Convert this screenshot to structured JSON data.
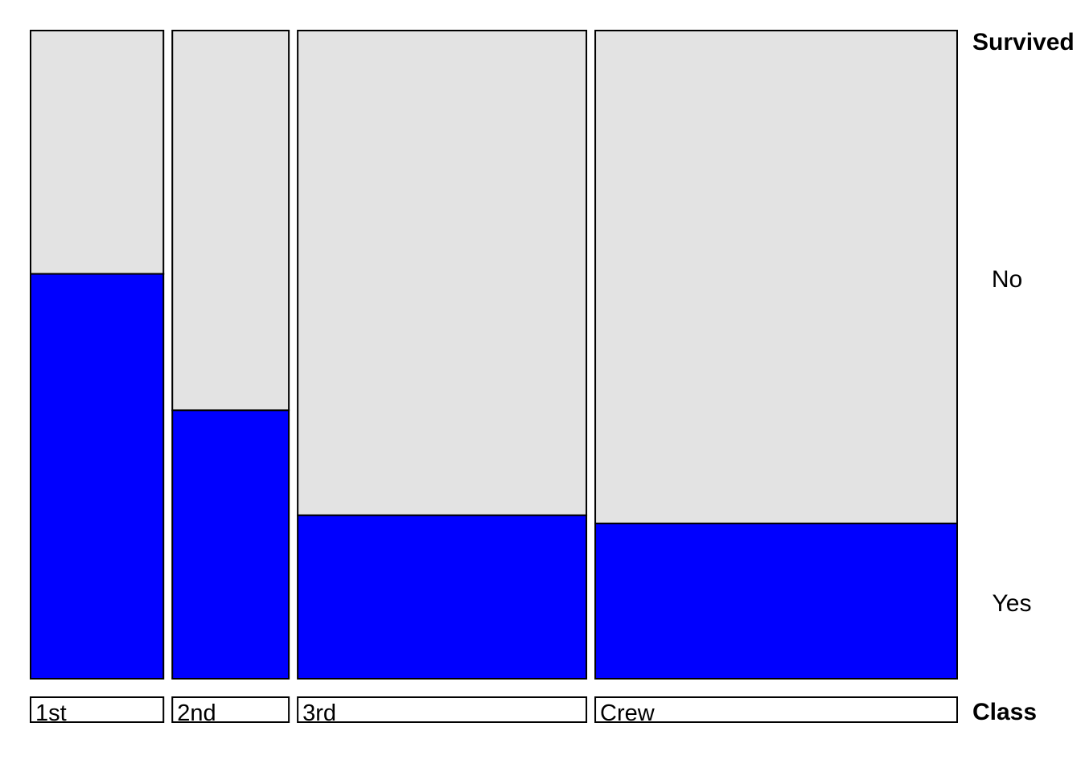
{
  "chart_data": {
    "type": "mosaic",
    "x_variable": "Class",
    "y_variable": "Survived",
    "categories": [
      "1st",
      "2nd",
      "3rd",
      "Crew"
    ],
    "levels": [
      "No",
      "Yes"
    ],
    "series": [
      {
        "name": "No",
        "values": [
          122,
          167,
          528,
          673
        ]
      },
      {
        "name": "Yes",
        "values": [
          203,
          118,
          178,
          212
        ]
      }
    ],
    "colors": {
      "No": "#e3e3e3",
      "Yes": "#0000ff",
      "outline": "#000000"
    },
    "legend_placement": "right",
    "grid": false
  }
}
